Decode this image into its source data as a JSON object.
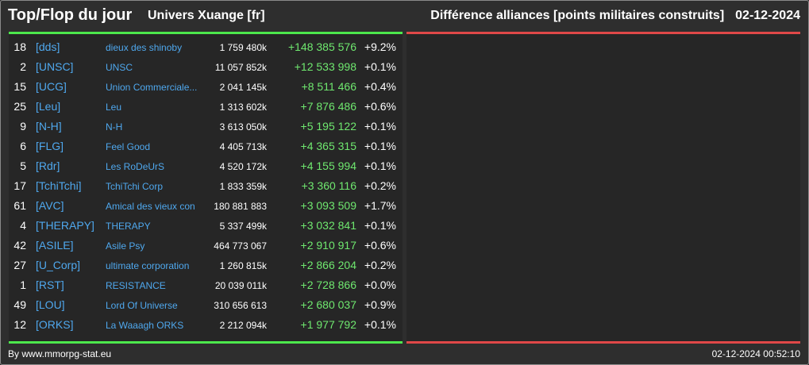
{
  "header": {
    "title": "Top/Flop du jour",
    "universe": "Univers Xuange [fr]",
    "right_title": "Différence alliances [points militaires construits]",
    "date": "02-12-2024"
  },
  "colors": {
    "top_accent": "#4ce84c",
    "flop_accent": "#e04848",
    "tag": "#4fa8ee",
    "gain": "#6fe86f"
  },
  "rows": [
    {
      "rank": "18",
      "tag": "[dds]",
      "name": "dieux des shinoby",
      "points": "1 759 480k",
      "diff": "+148 385 576",
      "pct": "+9.2%"
    },
    {
      "rank": "2",
      "tag": "[UNSC]",
      "name": "UNSC",
      "points": "11 057 852k",
      "diff": "+12 533 998",
      "pct": "+0.1%"
    },
    {
      "rank": "15",
      "tag": "[UCG]",
      "name": "Union Commerciale...",
      "points": "2 041 145k",
      "diff": "+8 511 466",
      "pct": "+0.4%"
    },
    {
      "rank": "25",
      "tag": "[Leu]",
      "name": "Leu",
      "points": "1 313 602k",
      "diff": "+7 876 486",
      "pct": "+0.6%"
    },
    {
      "rank": "9",
      "tag": "[N-H]",
      "name": "N-H",
      "points": "3 613 050k",
      "diff": "+5 195 122",
      "pct": "+0.1%"
    },
    {
      "rank": "6",
      "tag": "[FLG]",
      "name": "Feel Good",
      "points": "4 405 713k",
      "diff": "+4 365 315",
      "pct": "+0.1%"
    },
    {
      "rank": "5",
      "tag": "[Rdr]",
      "name": "Les RoDeUrS",
      "points": "4 520 172k",
      "diff": "+4 155 994",
      "pct": "+0.1%"
    },
    {
      "rank": "17",
      "tag": "[TchiTchi]",
      "name": "TchiTchi Corp",
      "points": "1 833 359k",
      "diff": "+3 360 116",
      "pct": "+0.2%"
    },
    {
      "rank": "61",
      "tag": "[AVC]",
      "name": "Amical des vieux con",
      "points": "180 881 883",
      "diff": "+3 093 509",
      "pct": "+1.7%"
    },
    {
      "rank": "4",
      "tag": "[THERAPY]",
      "name": "THERAPY",
      "points": "5 337 499k",
      "diff": "+3 032 841",
      "pct": "+0.1%"
    },
    {
      "rank": "42",
      "tag": "[ASILE]",
      "name": "Asile Psy",
      "points": "464 773 067",
      "diff": "+2 910 917",
      "pct": "+0.6%"
    },
    {
      "rank": "27",
      "tag": "[U_Corp]",
      "name": "ultimate corporation",
      "points": "1 260 815k",
      "diff": "+2 866 204",
      "pct": "+0.2%"
    },
    {
      "rank": "1",
      "tag": "[RST]",
      "name": "RESISTANCE",
      "points": "20 039 011k",
      "diff": "+2 728 866",
      "pct": "+0.0%"
    },
    {
      "rank": "49",
      "tag": "[LOU]",
      "name": "Lord Of Universe",
      "points": "310 656 613",
      "diff": "+2 680 037",
      "pct": "+0.9%"
    },
    {
      "rank": "12",
      "tag": "[ORKS]",
      "name": "La Waaagh ORKS",
      "points": "2 212 094k",
      "diff": "+1 977 792",
      "pct": "+0.1%"
    }
  ],
  "footer": {
    "credit": "By www.mmorpg-stat.eu",
    "timestamp": "02-12-2024 00:52:10"
  }
}
